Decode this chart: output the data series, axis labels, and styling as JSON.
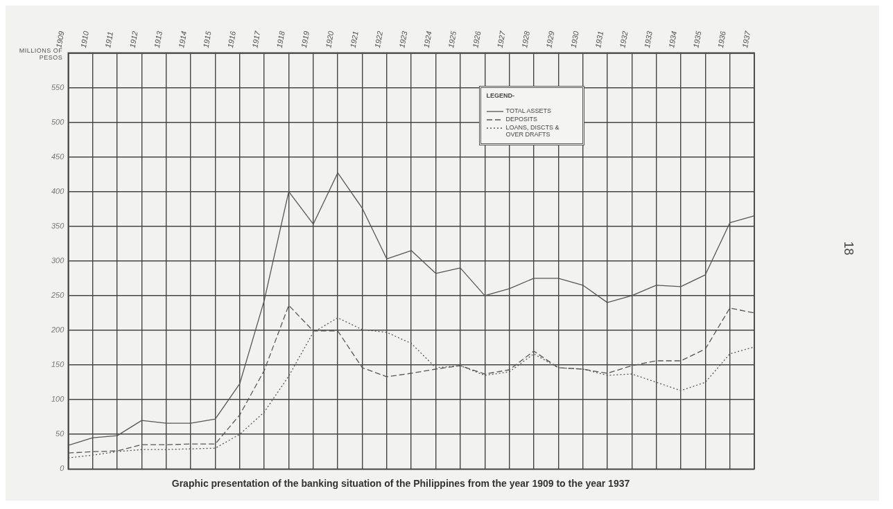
{
  "chart_data": {
    "type": "line",
    "title": "Graphic presentation of the banking situation of the Philippines from the year 1909 to the year 1937",
    "ylabel": "MILLIONS OF PESOS",
    "legend_title": "LEGEND-",
    "annotations": [
      "18"
    ],
    "categories": [
      "1909",
      "1910",
      "1911",
      "1912",
      "1913",
      "1914",
      "1915",
      "1916",
      "1917",
      "1918",
      "1919",
      "1920",
      "1921",
      "1922",
      "1923",
      "1924",
      "1925",
      "1926",
      "1927",
      "1928",
      "1929",
      "1930",
      "1931",
      "1932",
      "1933",
      "1934",
      "1935",
      "1936",
      "1937"
    ],
    "series": [
      {
        "name": "TOTAL ASSETS",
        "color": "#555555",
        "line_style": "solid",
        "values": [
          34,
          45,
          48,
          70,
          66,
          66,
          72,
          123,
          243,
          400,
          353,
          427,
          376,
          303,
          315,
          282,
          290,
          250,
          260,
          275,
          275,
          265,
          240,
          250,
          265,
          263,
          280,
          355,
          365
        ]
      },
      {
        "name": "DEPOSITS",
        "color": "#555555",
        "line_style": "dashed",
        "values": [
          23,
          25,
          26,
          35,
          35,
          36,
          36,
          78,
          142,
          236,
          199,
          199,
          146,
          133,
          138,
          144,
          149,
          137,
          143,
          170,
          146,
          144,
          138,
          149,
          156,
          156,
          173,
          232,
          225
        ]
      },
      {
        "name": "LOANS, DISCTS & OVER DRAFTS",
        "color": "#555555",
        "line_style": "dotted",
        "values": [
          16,
          20,
          25,
          28,
          28,
          29,
          30,
          50,
          82,
          134,
          197,
          218,
          201,
          197,
          181,
          146,
          149,
          135,
          140,
          166,
          146,
          144,
          135,
          137,
          125,
          113,
          125,
          166,
          176
        ]
      }
    ],
    "ylim": [
      0,
      600
    ],
    "yticks": [
      0,
      50,
      100,
      150,
      200,
      250,
      300,
      350,
      400,
      450,
      500,
      550,
      {
        "value": 600,
        "label": null
      }
    ],
    "grid": true,
    "legend": "top right",
    "marker": "none"
  }
}
